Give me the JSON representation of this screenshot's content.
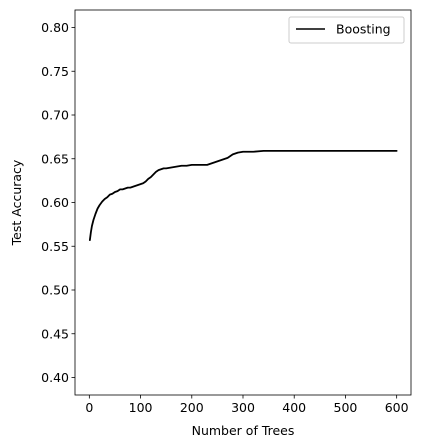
{
  "chart_data": {
    "type": "line",
    "xlabel": "Number of Trees",
    "ylabel": "Test Accuracy",
    "xlim": [
      -28,
      628
    ],
    "ylim": [
      0.38,
      0.82
    ],
    "xticks": [
      0,
      100,
      200,
      300,
      400,
      500,
      600
    ],
    "xtick_labels": [
      "0",
      "100",
      "200",
      "300",
      "400",
      "500",
      "600"
    ],
    "yticks": [
      0.4,
      0.45,
      0.5,
      0.55,
      0.6,
      0.65,
      0.7,
      0.75,
      0.8
    ],
    "ytick_labels": [
      "0.40",
      "0.45",
      "0.50",
      "0.55",
      "0.60",
      "0.65",
      "0.70",
      "0.75",
      "0.80"
    ],
    "grid": false,
    "legend_position": "top-right",
    "series": [
      {
        "name": "Boosting",
        "color": "#000000",
        "x": [
          1,
          3,
          5,
          8,
          12,
          16,
          20,
          25,
          30,
          35,
          40,
          45,
          50,
          55,
          60,
          65,
          70,
          75,
          80,
          85,
          90,
          95,
          100,
          105,
          110,
          115,
          120,
          125,
          130,
          135,
          140,
          145,
          150,
          160,
          170,
          180,
          190,
          200,
          210,
          220,
          230,
          235,
          240,
          245,
          250,
          255,
          260,
          265,
          270,
          275,
          280,
          285,
          290,
          300,
          320,
          340,
          360,
          380,
          400,
          420,
          440,
          460,
          480,
          500,
          520,
          540,
          560,
          580,
          600
        ],
        "y": [
          0.557,
          0.566,
          0.573,
          0.58,
          0.587,
          0.593,
          0.597,
          0.601,
          0.604,
          0.606,
          0.609,
          0.61,
          0.612,
          0.613,
          0.615,
          0.615,
          0.616,
          0.617,
          0.617,
          0.618,
          0.619,
          0.62,
          0.621,
          0.622,
          0.624,
          0.627,
          0.629,
          0.632,
          0.635,
          0.637,
          0.638,
          0.639,
          0.639,
          0.64,
          0.641,
          0.642,
          0.642,
          0.643,
          0.643,
          0.643,
          0.643,
          0.644,
          0.645,
          0.646,
          0.647,
          0.648,
          0.649,
          0.65,
          0.651,
          0.653,
          0.655,
          0.656,
          0.657,
          0.658,
          0.658,
          0.659,
          0.659,
          0.659,
          0.659,
          0.659,
          0.659,
          0.659,
          0.659,
          0.659,
          0.659,
          0.659,
          0.659,
          0.659,
          0.659
        ]
      }
    ]
  }
}
